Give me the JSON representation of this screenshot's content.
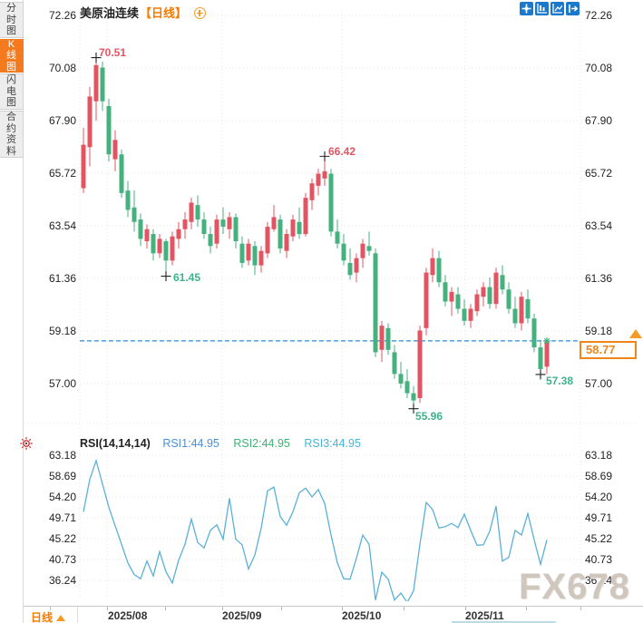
{
  "app": {
    "watermark": "FX678"
  },
  "sidebar": {
    "tabs": [
      {
        "label": "分时图",
        "active": false
      },
      {
        "label": "K线图",
        "active": true
      },
      {
        "label": "闪电图",
        "active": false
      },
      {
        "label": "合约资料",
        "active": false
      }
    ]
  },
  "header": {
    "title": "美原油连续",
    "period_tag": "【日线】",
    "add_icon": "circle-plus-icon"
  },
  "toolbar": {
    "icons": [
      "move-icon",
      "fit-vertical-axis-icon",
      "fit-horizontal-axis-icon",
      "exit-fullscreen-icon"
    ]
  },
  "price_axis": {
    "labels": [
      "72.26",
      "70.08",
      "67.90",
      "65.72",
      "63.54",
      "61.36",
      "59.18",
      "57.00"
    ]
  },
  "rsi_axis": {
    "labels": [
      "63.18",
      "58.69",
      "54.20",
      "49.71",
      "45.22",
      "40.73",
      "36.24"
    ]
  },
  "x_axis": {
    "labels": [
      "2025/08",
      "2025/09",
      "2025/10",
      "2025/11"
    ]
  },
  "footer": {
    "period_label": "日线"
  },
  "price_panel": {
    "current_price": "58.77",
    "annotations": {
      "high_peak": "70.51",
      "mid_peak": "66.42",
      "low_1": "61.45",
      "low_2": "55.96",
      "low_3": "57.38"
    }
  },
  "rsi_panel": {
    "title": "RSI(14,14,14)",
    "rsi1": "RSI1:44.95",
    "rsi2": "RSI2:44.95",
    "rsi3": "RSI3:44.95"
  },
  "colors": {
    "up": "#e25461",
    "down": "#45b17e",
    "label_red": "#e25461",
    "label_green": "#3db28c",
    "accent_orange": "#f57a00",
    "dashed_line": "#2f87d5",
    "rsi_line": "#5ab0d8",
    "rsi1_text": "#4a90d9",
    "rsi2_text": "#3bb273",
    "rsi3_text": "#45b5d8",
    "grid": "#e4e4e4"
  },
  "chart_data": [
    {
      "type": "candlestick",
      "title": "美原油连续 日线",
      "ylim": [
        57.0,
        72.26
      ],
      "y_ticks": [
        72.26,
        70.08,
        67.9,
        65.72,
        63.54,
        61.36,
        59.18,
        57.0
      ],
      "x_months": [
        "2025/08",
        "2025/09",
        "2025/10",
        "2025/11"
      ],
      "last_price": 58.77,
      "candles": [
        [
          65.1,
          67.6,
          64.9,
          66.9
        ],
        [
          66.8,
          69.3,
          66.0,
          68.9
        ],
        [
          68.7,
          70.51,
          67.9,
          70.2
        ],
        [
          70.1,
          70.35,
          68.3,
          68.7
        ],
        [
          68.5,
          68.8,
          66.2,
          66.5
        ],
        [
          66.3,
          67.5,
          65.8,
          67.1
        ],
        [
          66.5,
          66.7,
          64.7,
          64.9
        ],
        [
          65.0,
          65.4,
          63.9,
          64.2
        ],
        [
          64.3,
          65.0,
          63.3,
          63.7
        ],
        [
          63.8,
          64.05,
          62.7,
          63.0
        ],
        [
          62.9,
          63.6,
          62.6,
          63.4
        ],
        [
          63.2,
          63.4,
          62.1,
          62.4
        ],
        [
          62.4,
          63.2,
          62.2,
          63.0
        ],
        [
          62.9,
          63.0,
          61.45,
          62.1
        ],
        [
          62.1,
          63.3,
          61.9,
          63.1
        ],
        [
          63.0,
          63.7,
          62.6,
          63.4
        ],
        [
          63.4,
          64.1,
          63.0,
          63.8
        ],
        [
          63.7,
          64.7,
          63.4,
          64.5
        ],
        [
          64.4,
          64.8,
          63.5,
          63.8
        ],
        [
          63.8,
          64.1,
          63.0,
          63.2
        ],
        [
          63.2,
          63.5,
          62.4,
          62.7
        ],
        [
          62.8,
          64.0,
          62.6,
          63.8
        ],
        [
          63.8,
          64.3,
          63.2,
          63.5
        ],
        [
          63.4,
          64.1,
          63.0,
          63.9
        ],
        [
          63.9,
          64.05,
          62.6,
          62.9
        ],
        [
          62.8,
          63.1,
          61.8,
          62.0
        ],
        [
          62.1,
          63.0,
          61.9,
          62.8
        ],
        [
          62.7,
          62.9,
          61.5,
          61.9
        ],
        [
          61.9,
          62.7,
          61.6,
          62.5
        ],
        [
          62.4,
          63.7,
          62.2,
          63.5
        ],
        [
          63.4,
          64.4,
          63.3,
          63.9
        ],
        [
          63.8,
          64.0,
          62.4,
          62.6
        ],
        [
          62.5,
          63.4,
          62.2,
          63.2
        ],
        [
          63.1,
          64.0,
          62.9,
          63.8
        ],
        [
          63.7,
          64.3,
          63.0,
          63.2
        ],
        [
          63.2,
          64.9,
          63.1,
          64.7
        ],
        [
          64.6,
          65.5,
          64.2,
          65.3
        ],
        [
          65.2,
          65.9,
          64.8,
          65.7
        ],
        [
          65.5,
          66.42,
          65.2,
          65.8
        ],
        [
          65.7,
          65.9,
          63.1,
          63.3
        ],
        [
          63.3,
          63.8,
          62.6,
          62.8
        ],
        [
          62.8,
          63.2,
          61.9,
          62.1
        ],
        [
          62.0,
          62.6,
          61.3,
          61.5
        ],
        [
          61.6,
          62.4,
          61.2,
          62.2
        ],
        [
          62.2,
          63.0,
          61.8,
          62.8
        ],
        [
          62.7,
          63.3,
          62.3,
          62.5
        ],
        [
          62.4,
          62.6,
          58.1,
          58.3
        ],
        [
          58.4,
          59.6,
          57.9,
          59.4
        ],
        [
          59.3,
          59.5,
          58.2,
          58.4
        ],
        [
          58.3,
          58.6,
          57.2,
          57.4
        ],
        [
          57.4,
          57.9,
          56.8,
          57.0
        ],
        [
          57.1,
          57.6,
          56.4,
          56.6
        ],
        [
          56.6,
          56.9,
          55.96,
          56.3
        ],
        [
          56.4,
          59.4,
          56.2,
          59.2
        ],
        [
          59.3,
          61.8,
          59.0,
          61.6
        ],
        [
          61.5,
          62.6,
          61.2,
          62.2
        ],
        [
          62.2,
          62.5,
          61.0,
          61.2
        ],
        [
          61.2,
          61.5,
          60.2,
          60.4
        ],
        [
          60.4,
          61.0,
          59.8,
          60.8
        ],
        [
          60.7,
          61.0,
          59.9,
          60.1
        ],
        [
          60.1,
          60.5,
          59.4,
          59.6
        ],
        [
          59.6,
          60.3,
          59.3,
          60.1
        ],
        [
          60.0,
          60.9,
          59.8,
          60.7
        ],
        [
          60.6,
          61.2,
          60.2,
          61.0
        ],
        [
          61.0,
          61.4,
          60.1,
          60.3
        ],
        [
          60.3,
          61.8,
          60.1,
          61.6
        ],
        [
          61.5,
          61.9,
          60.7,
          60.9
        ],
        [
          60.9,
          61.2,
          59.9,
          60.1
        ],
        [
          60.1,
          60.6,
          59.3,
          59.5
        ],
        [
          59.5,
          60.8,
          59.2,
          60.6
        ],
        [
          60.5,
          60.9,
          59.5,
          59.7
        ],
        [
          59.7,
          59.9,
          58.3,
          58.5
        ],
        [
          58.5,
          58.8,
          57.38,
          57.6
        ],
        [
          57.7,
          58.9,
          57.4,
          58.77
        ]
      ],
      "markers": [
        {
          "index": 2,
          "price": 70.51,
          "label": "70.51",
          "kind": "high"
        },
        {
          "index": 38,
          "price": 66.42,
          "label": "66.42",
          "kind": "high"
        },
        {
          "index": 13,
          "price": 61.45,
          "label": "61.45",
          "kind": "low"
        },
        {
          "index": 52,
          "price": 55.96,
          "label": "55.96",
          "kind": "low"
        },
        {
          "index": 72,
          "price": 57.38,
          "label": "57.38",
          "kind": "low"
        },
        {
          "index": 73,
          "price": 58.77,
          "kind": "close-star"
        }
      ]
    },
    {
      "type": "line",
      "title": "RSI(14,14,14)",
      "legend": [
        "RSI1:44.95",
        "RSI2:44.95",
        "RSI3:44.95"
      ],
      "ylim": [
        36.24,
        63.18
      ],
      "y_ticks": [
        63.18,
        58.69,
        54.2,
        49.71,
        45.22,
        40.73,
        36.24
      ],
      "values": [
        51,
        58,
        62,
        57,
        52,
        48,
        44,
        40,
        37.5,
        36.6,
        40.4,
        37.2,
        42.4,
        38.1,
        35.7,
        40.6,
        44,
        49.4,
        44.4,
        43.2,
        47,
        48.2,
        45.1,
        53.9,
        45.1,
        43.9,
        38.7,
        41.7,
        47.5,
        55.5,
        56.3,
        50,
        48.1,
        51,
        55.1,
        56.1,
        54.2,
        55.8,
        52.8,
        46,
        40,
        36.6,
        36.5,
        41,
        46,
        44,
        32,
        38,
        36.5,
        32,
        33.5,
        31.5,
        34,
        44,
        53,
        51.5,
        47.5,
        47.8,
        48.5,
        47.6,
        50.5,
        47,
        43.8,
        43.9,
        46.8,
        52.2,
        40.4,
        41.2,
        47,
        46,
        50.6,
        45,
        39.7,
        44.95
      ]
    }
  ]
}
